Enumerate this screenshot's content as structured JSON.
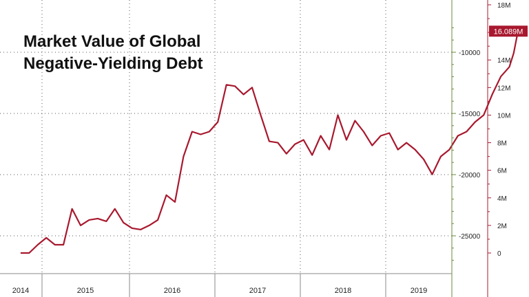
{
  "chart_data": {
    "type": "line",
    "title": "Market Value of Global",
    "subtitle": "Negative-Yielding Debt",
    "x_labels": [
      "2014",
      "2015",
      "2016",
      "2017",
      "2018",
      "2019"
    ],
    "y_left_ticks": [
      "-10000",
      "-15000",
      "-20000",
      "-25000"
    ],
    "y_left_values": [
      -10000,
      -15000,
      -20000,
      -25000
    ],
    "y_right_ticks": [
      "18M",
      "16M",
      "14M",
      "12M",
      "10M",
      "8M",
      "6M",
      "4M",
      "2M",
      "0"
    ],
    "y_right_values": [
      18,
      16,
      14,
      12,
      10,
      8,
      6,
      4,
      2,
      0
    ],
    "ylim_right": [
      -1.5,
      18
    ],
    "last_value_label": "16.089M",
    "last_value": 16.089,
    "grid": true,
    "series": [
      {
        "color": "#a8182e",
        "x": [
          2013.75,
          2013.85,
          2013.95,
          2014.05,
          2014.15,
          2014.25,
          2014.35,
          2014.45,
          2014.55,
          2014.65,
          2014.75,
          2014.85,
          2014.95,
          2015.05,
          2015.15,
          2015.25,
          2015.35,
          2015.45,
          2015.55,
          2015.65,
          2015.75,
          2015.85,
          2015.95,
          2016.05,
          2016.15,
          2016.25,
          2016.35,
          2016.45,
          2016.55,
          2016.65,
          2016.75,
          2016.85,
          2016.95,
          2017.05,
          2017.15,
          2017.25,
          2017.35,
          2017.45,
          2017.55,
          2017.65,
          2017.75,
          2017.85,
          2017.95,
          2018.05,
          2018.15,
          2018.25,
          2018.35,
          2018.45,
          2018.55,
          2018.65,
          2018.75,
          2018.85,
          2018.95,
          2019.05,
          2019.15,
          2019.25,
          2019.35,
          2019.45,
          2019.5,
          2019.55
        ],
        "values": [
          0.0,
          0.0,
          0.6,
          1.1,
          0.6,
          0.6,
          3.2,
          2.0,
          2.4,
          2.5,
          2.3,
          3.2,
          2.2,
          1.8,
          1.7,
          2.0,
          2.4,
          4.2,
          3.7,
          7.0,
          8.8,
          8.6,
          8.8,
          9.5,
          12.2,
          12.1,
          11.5,
          12.0,
          10.0,
          8.1,
          8.0,
          7.2,
          7.9,
          8.2,
          7.1,
          8.5,
          7.5,
          10.0,
          8.2,
          9.6,
          8.8,
          7.8,
          8.5,
          8.7,
          7.5,
          8.0,
          7.5,
          6.8,
          5.7,
          7.0,
          7.5,
          8.5,
          8.8,
          9.5,
          10.0,
          11.5,
          12.8,
          13.5,
          14.5,
          16.089
        ]
      }
    ]
  }
}
